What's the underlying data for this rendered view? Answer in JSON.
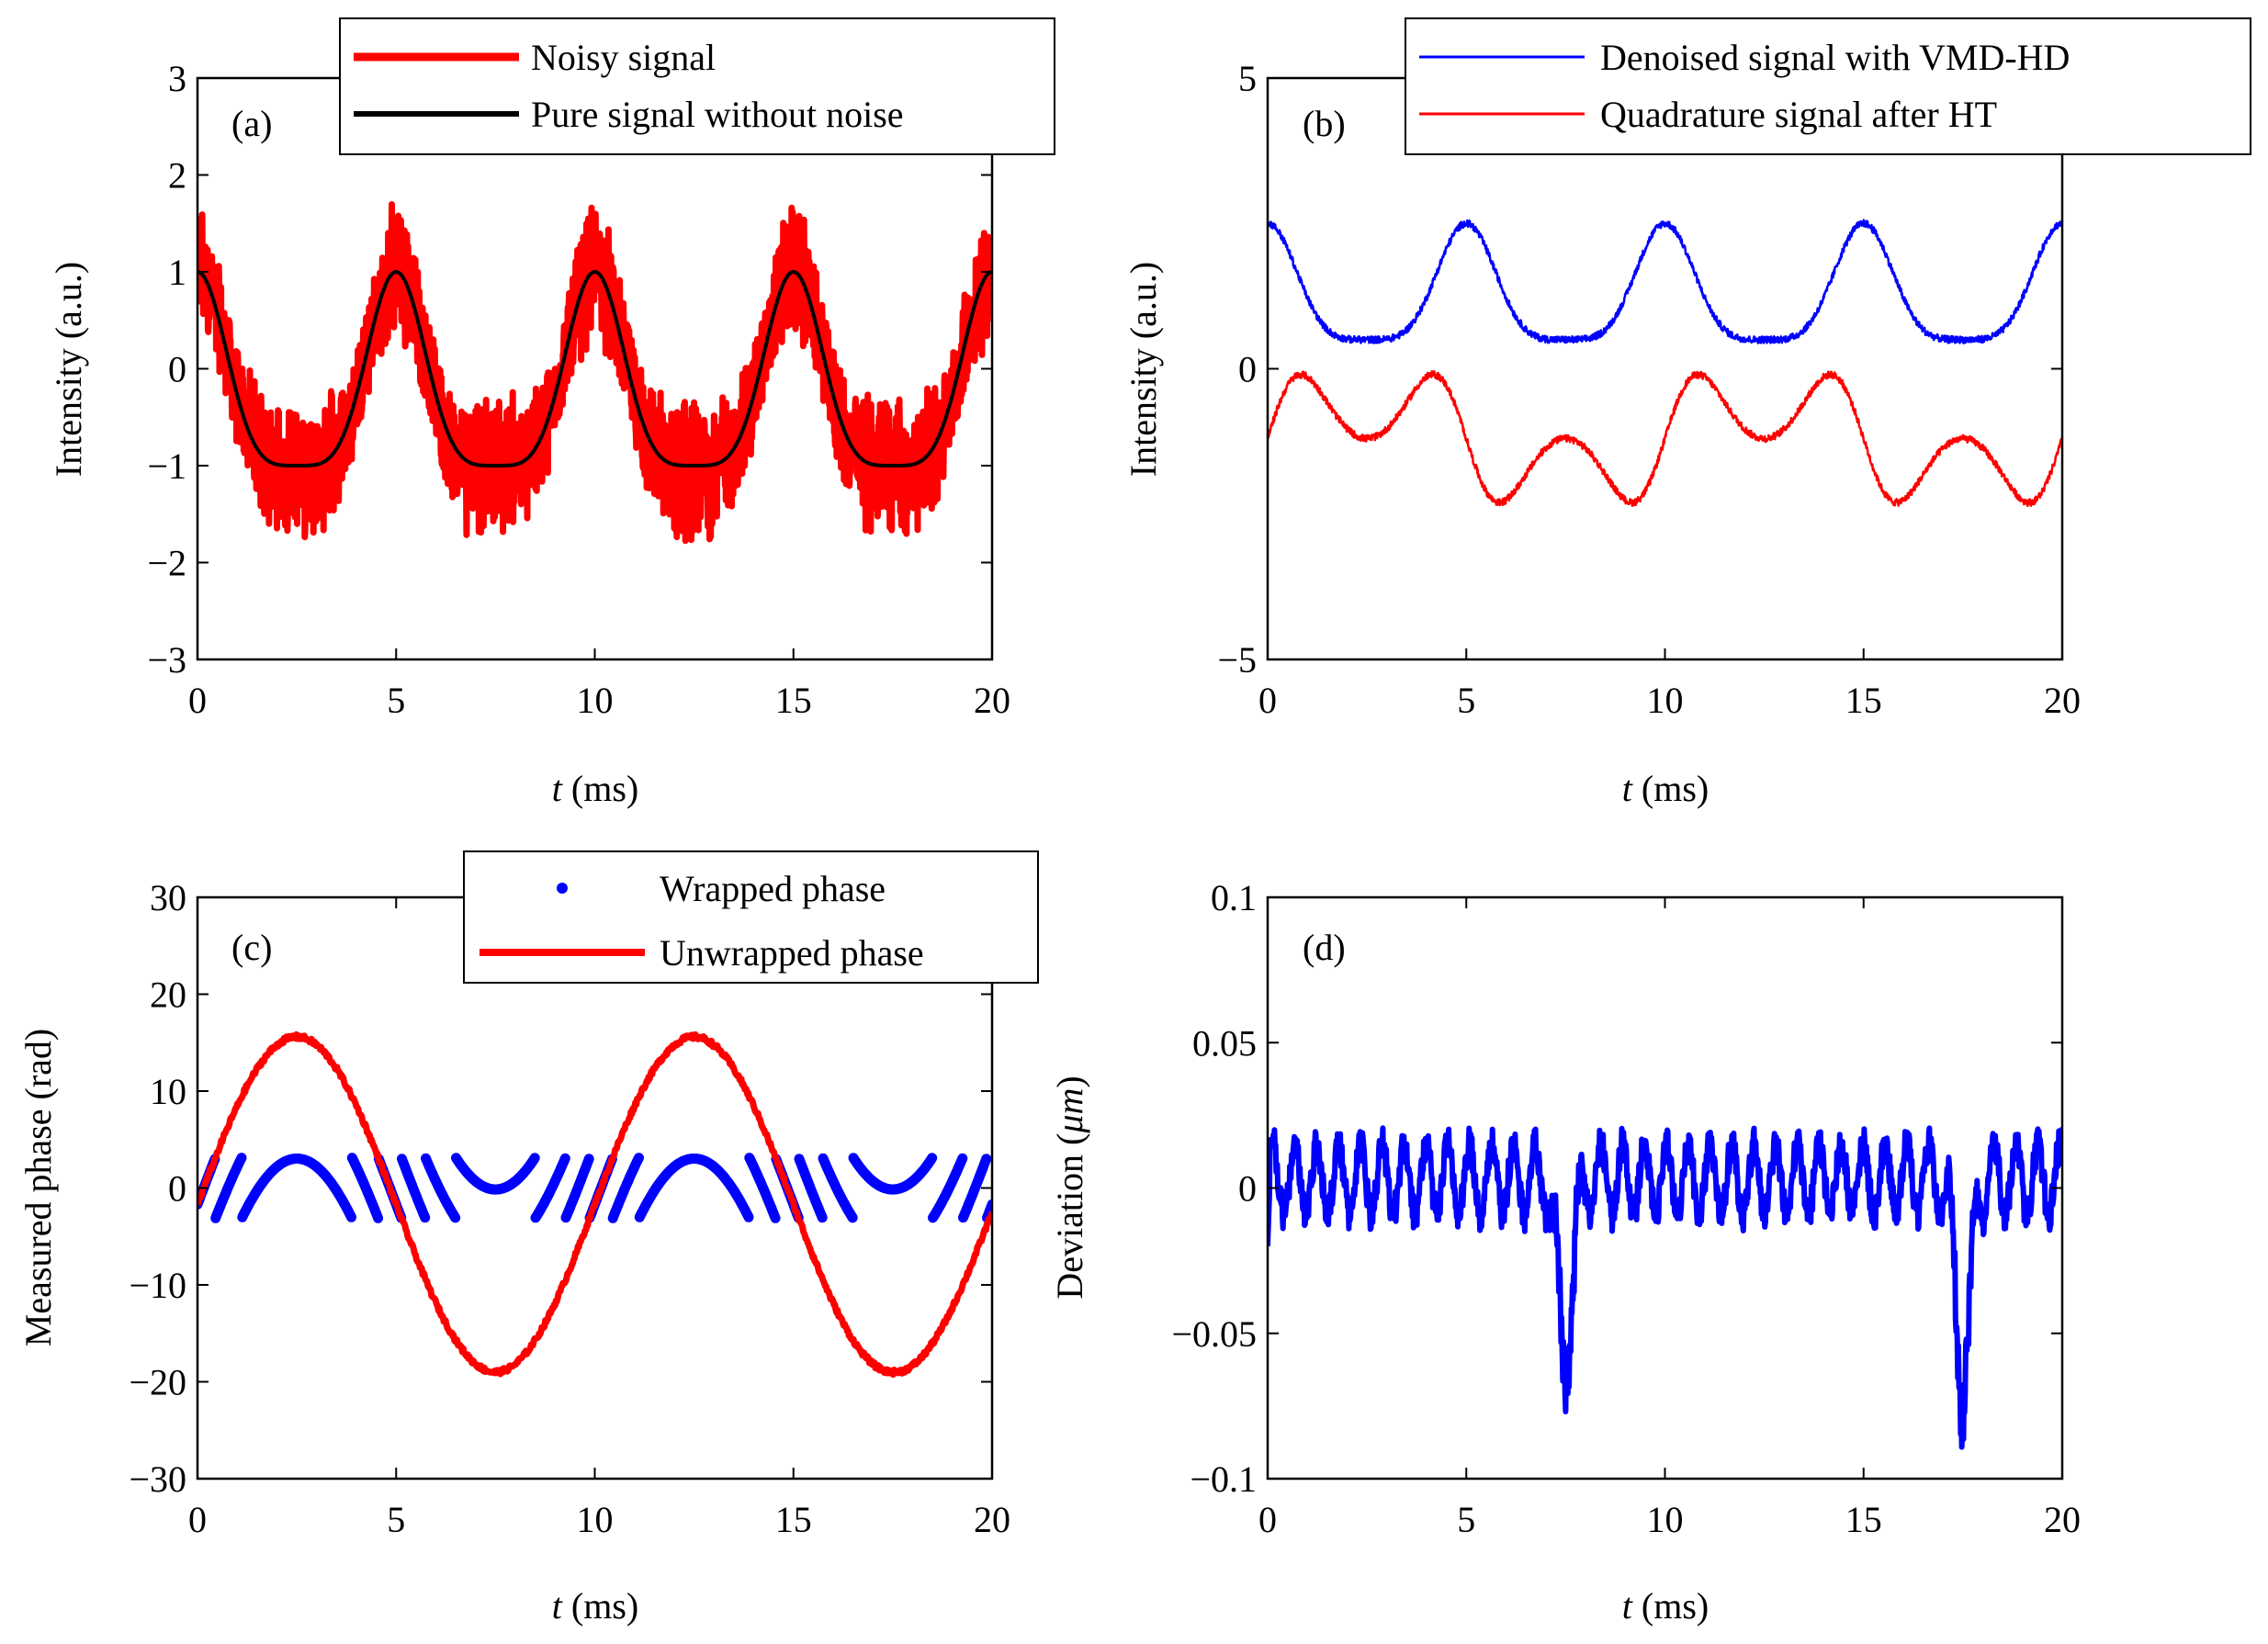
{
  "figure": {
    "panels": [
      "(a)",
      "(b)",
      "(c)",
      "(d)"
    ]
  },
  "chart_data": [
    {
      "id": "a",
      "type": "line",
      "panel_label": "(a)",
      "xlabel_var": "t",
      "xlabel_unit": " (ms)",
      "ylabel": "Intensity (a.u.)",
      "xlim": [
        0,
        20
      ],
      "ylim": [
        -3,
        3
      ],
      "xticks": [
        0,
        5,
        10,
        15,
        20
      ],
      "yticks": [
        -3,
        -2,
        -1,
        0,
        1,
        2,
        3
      ],
      "ytick_labels": [
        "−3",
        "−2",
        "−1",
        "0",
        "1",
        "2",
        "3"
      ],
      "legend": {
        "location": "top-right",
        "entries": [
          "Noisy signal",
          "Pure signal without noise"
        ]
      },
      "series": [
        {
          "name": "Noisy signal",
          "color": "#ff0000",
          "model": "pure_plus_noise",
          "noise_amplitude": 0.45
        },
        {
          "name": "Pure signal without noise",
          "color": "#000000",
          "model": "cos(pi*sin(2*pi*t/10))",
          "ymin": -1,
          "ymax": 1
        }
      ]
    },
    {
      "id": "b",
      "type": "line",
      "panel_label": "(b)",
      "xlabel_var": "t",
      "xlabel_unit": " (ms)",
      "ylabel": "Intensity (a.u.)",
      "xlim": [
        0,
        20
      ],
      "ylim": [
        -5,
        5
      ],
      "xticks": [
        0,
        5,
        10,
        15,
        20
      ],
      "yticks": [
        -5,
        0,
        5
      ],
      "ytick_labels": [
        "−5",
        "0",
        "5"
      ],
      "legend": {
        "location": "top-right",
        "entries": [
          "Denoised signal with VMD-HD",
          "Quadrature signal after HT"
        ]
      },
      "series": [
        {
          "name": "Denoised signal with VMD-HD",
          "color": "#0000ff",
          "offset": 1.5,
          "amplitude": 1.0
        },
        {
          "name": "Quadrature signal after HT",
          "color": "#ff0000",
          "offset": -1.2,
          "amplitude": 1.1
        }
      ]
    },
    {
      "id": "c",
      "type": "line",
      "panel_label": "(c)",
      "xlabel_var": "t",
      "xlabel_unit": " (ms)",
      "ylabel": "Measured phase (rad)",
      "xlim": [
        0,
        20
      ],
      "ylim": [
        -30,
        30
      ],
      "xticks": [
        0,
        5,
        10,
        15,
        20
      ],
      "yticks": [
        -30,
        -20,
        -10,
        0,
        10,
        20,
        30
      ],
      "ytick_labels": [
        "−30",
        "−20",
        "−10",
        "0",
        "10",
        "20",
        "30"
      ],
      "legend": {
        "location": "top-right",
        "entries": [
          "Wrapped phase",
          "Unwrapped phase"
        ]
      },
      "series": [
        {
          "name": "Wrapped phase",
          "color": "#0000ff",
          "style": "dots",
          "range": [
            -3.14,
            3.14
          ]
        },
        {
          "name": "Unwrapped phase",
          "color": "#ff0000",
          "style": "line",
          "max": 15.6,
          "min": -19.0,
          "start": -1.7,
          "end": -2.5,
          "period": 10
        }
      ]
    },
    {
      "id": "d",
      "type": "line",
      "panel_label": "(d)",
      "xlabel_var": "t",
      "xlabel_unit": " (ms)",
      "ylabel_prefix": "Deviation (",
      "ylabel_unit": "μm",
      "ylabel_suffix": ")",
      "xlim": [
        0,
        20
      ],
      "ylim": [
        -0.1,
        0.1
      ],
      "xticks": [
        0,
        5,
        10,
        15,
        20
      ],
      "yticks": [
        -0.1,
        -0.05,
        0,
        0.05,
        0.1
      ],
      "ytick_labels": [
        "−0.1",
        "−0.05",
        "0",
        "0.05",
        "0.1"
      ],
      "series": [
        {
          "name": "Deviation",
          "color": "#0000ff",
          "baseline": 0.003,
          "dips": [
            {
              "t": 7.5,
              "min": -0.07
            },
            {
              "t": 17.5,
              "min": -0.08
            }
          ]
        }
      ]
    }
  ]
}
